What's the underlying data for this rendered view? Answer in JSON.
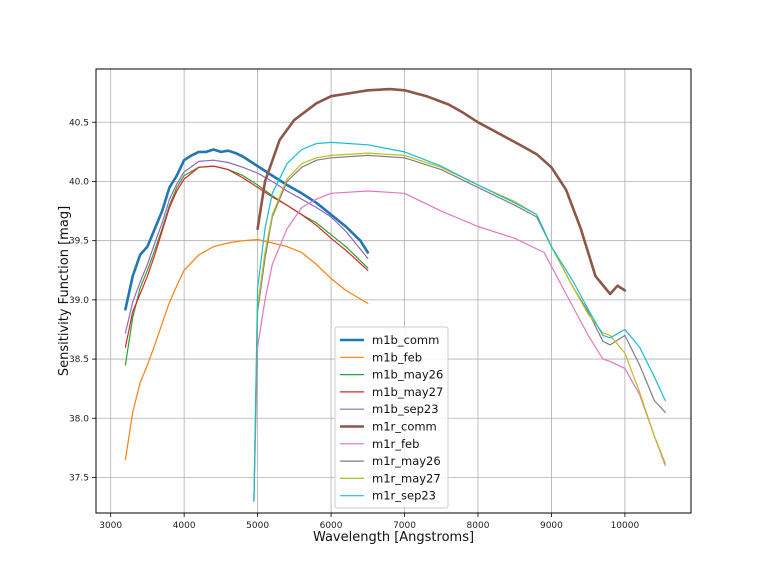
{
  "chart_data": {
    "type": "line",
    "xlabel": "Wavelength [Angstroms]",
    "ylabel": "Sensitivity Function [mag]",
    "xlim": [
      2800,
      10900
    ],
    "ylim": [
      37.2,
      40.95
    ],
    "xticks": [
      3000,
      4000,
      5000,
      6000,
      7000,
      8000,
      9000,
      10000
    ],
    "yticks": [
      37.5,
      38.0,
      38.5,
      39.0,
      39.5,
      40.0,
      40.5
    ],
    "grid": true,
    "legend_position": "lower-center",
    "series": [
      {
        "name": "m1b_comm",
        "color": "#1f77b4",
        "linewidth": 2.6,
        "x": [
          3200,
          3300,
          3400,
          3500,
          3600,
          3700,
          3800,
          3900,
          4000,
          4100,
          4200,
          4300,
          4400,
          4500,
          4600,
          4700,
          4800,
          4900,
          5000,
          5200,
          5400,
          5600,
          5800,
          6000,
          6200,
          6400,
          6500
        ],
        "y": [
          38.92,
          39.2,
          39.38,
          39.45,
          39.6,
          39.75,
          39.95,
          40.05,
          40.18,
          40.22,
          40.25,
          40.25,
          40.27,
          40.25,
          40.26,
          40.24,
          40.21,
          40.17,
          40.13,
          40.05,
          39.97,
          39.9,
          39.82,
          39.72,
          39.62,
          39.5,
          39.4
        ]
      },
      {
        "name": "m1b_feb",
        "color": "#ff7f0e",
        "linewidth": 1.2,
        "x": [
          3200,
          3300,
          3400,
          3500,
          3600,
          3700,
          3800,
          3900,
          4000,
          4200,
          4400,
          4600,
          4800,
          5000,
          5200,
          5400,
          5600,
          5800,
          6000,
          6200,
          6500
        ],
        "y": [
          37.65,
          38.05,
          38.3,
          38.45,
          38.62,
          38.8,
          38.98,
          39.12,
          39.25,
          39.38,
          39.45,
          39.48,
          39.5,
          39.51,
          39.48,
          39.45,
          39.4,
          39.3,
          39.18,
          39.08,
          38.97
        ]
      },
      {
        "name": "m1b_may26",
        "color": "#2ca02c",
        "linewidth": 1.2,
        "x": [
          3200,
          3300,
          3400,
          3500,
          3600,
          3700,
          3800,
          3900,
          4000,
          4200,
          4400,
          4600,
          4800,
          5000,
          5200,
          5400,
          5600,
          5800,
          6000,
          6200,
          6500
        ],
        "y": [
          38.45,
          38.85,
          39.1,
          39.25,
          39.42,
          39.6,
          39.8,
          39.95,
          40.05,
          40.12,
          40.13,
          40.1,
          40.05,
          39.97,
          39.88,
          39.8,
          39.72,
          39.65,
          39.55,
          39.45,
          39.27
        ]
      },
      {
        "name": "m1b_may27",
        "color": "#d62728",
        "linewidth": 1.2,
        "x": [
          3200,
          3300,
          3400,
          3500,
          3600,
          3700,
          3800,
          3900,
          4000,
          4200,
          4400,
          4600,
          4800,
          5000,
          5200,
          5400,
          5600,
          5800,
          6000,
          6200,
          6500
        ],
        "y": [
          38.6,
          38.9,
          39.05,
          39.2,
          39.38,
          39.58,
          39.78,
          39.92,
          40.02,
          40.12,
          40.13,
          40.1,
          40.03,
          39.95,
          39.87,
          39.8,
          39.72,
          39.63,
          39.52,
          39.42,
          39.25
        ]
      },
      {
        "name": "m1b_sep23",
        "color": "#9467bd",
        "linewidth": 1.2,
        "x": [
          3200,
          3300,
          3400,
          3500,
          3600,
          3700,
          3800,
          3900,
          4000,
          4200,
          4400,
          4600,
          4800,
          5000,
          5200,
          5400,
          5600,
          5800,
          6000,
          6200,
          6500
        ],
        "y": [
          38.72,
          38.98,
          39.15,
          39.3,
          39.48,
          39.65,
          39.85,
          39.98,
          40.08,
          40.17,
          40.18,
          40.16,
          40.12,
          40.07,
          40.0,
          39.92,
          39.85,
          39.78,
          39.7,
          39.58,
          39.35
        ]
      },
      {
        "name": "m1r_comm",
        "color": "#8c564b",
        "linewidth": 2.6,
        "x": [
          5000,
          5100,
          5300,
          5500,
          5800,
          6000,
          6200,
          6500,
          6800,
          7000,
          7300,
          7600,
          7800,
          8000,
          8300,
          8600,
          8800,
          9000,
          9200,
          9400,
          9600,
          9800,
          9900,
          10000
        ],
        "y": [
          39.6,
          40.0,
          40.35,
          40.52,
          40.66,
          40.72,
          40.74,
          40.77,
          40.78,
          40.77,
          40.72,
          40.65,
          40.58,
          40.5,
          40.4,
          40.3,
          40.23,
          40.12,
          39.93,
          39.6,
          39.2,
          39.05,
          39.12,
          39.08
        ]
      },
      {
        "name": "m1r_feb",
        "color": "#e377c2",
        "linewidth": 1.2,
        "x": [
          4950,
          5000,
          5100,
          5200,
          5400,
          5600,
          5800,
          6000,
          6500,
          7000,
          7500,
          8000,
          8500,
          8900,
          9200,
          9500,
          9700,
          9800,
          10000,
          10200,
          10400,
          10550
        ],
        "y": [
          37.3,
          38.6,
          39.0,
          39.3,
          39.6,
          39.78,
          39.85,
          39.9,
          39.92,
          39.9,
          39.75,
          39.62,
          39.52,
          39.4,
          39.05,
          38.7,
          38.5,
          38.48,
          38.42,
          38.2,
          37.85,
          37.6
        ]
      },
      {
        "name": "m1r_may26",
        "color": "#7f7f7f",
        "linewidth": 1.2,
        "x": [
          4950,
          5000,
          5100,
          5200,
          5400,
          5600,
          5800,
          6000,
          6500,
          7000,
          7500,
          8000,
          8500,
          8800,
          9000,
          9300,
          9500,
          9700,
          9800,
          10000,
          10200,
          10400,
          10550
        ],
        "y": [
          37.3,
          38.9,
          39.35,
          39.7,
          40.0,
          40.12,
          40.18,
          40.2,
          40.22,
          40.2,
          40.1,
          39.95,
          39.8,
          39.7,
          39.45,
          39.1,
          38.9,
          38.65,
          38.62,
          38.7,
          38.45,
          38.15,
          38.05
        ]
      },
      {
        "name": "m1r_may27",
        "color": "#bcbd22",
        "linewidth": 1.2,
        "x": [
          4950,
          5000,
          5100,
          5200,
          5400,
          5600,
          5800,
          6000,
          6500,
          7000,
          7500,
          8000,
          8500,
          8800,
          9000,
          9300,
          9500,
          9700,
          9800,
          10000,
          10200,
          10400,
          10550
        ],
        "y": [
          37.3,
          38.95,
          39.4,
          39.72,
          40.02,
          40.15,
          40.2,
          40.22,
          40.24,
          40.22,
          40.12,
          39.97,
          39.83,
          39.72,
          39.45,
          39.1,
          38.88,
          38.72,
          38.7,
          38.55,
          38.22,
          37.85,
          37.62
        ]
      },
      {
        "name": "m1r_sep23",
        "color": "#17becf",
        "linewidth": 1.2,
        "x": [
          4950,
          5000,
          5100,
          5200,
          5400,
          5600,
          5800,
          6000,
          6500,
          7000,
          7500,
          8000,
          8500,
          8800,
          9000,
          9300,
          9500,
          9700,
          9800,
          10000,
          10200,
          10400,
          10550
        ],
        "y": [
          37.3,
          39.1,
          39.6,
          39.9,
          40.15,
          40.27,
          40.32,
          40.33,
          40.31,
          40.25,
          40.13,
          39.97,
          39.82,
          39.72,
          39.45,
          39.15,
          38.92,
          38.7,
          38.68,
          38.75,
          38.6,
          38.35,
          38.15
        ]
      }
    ]
  }
}
